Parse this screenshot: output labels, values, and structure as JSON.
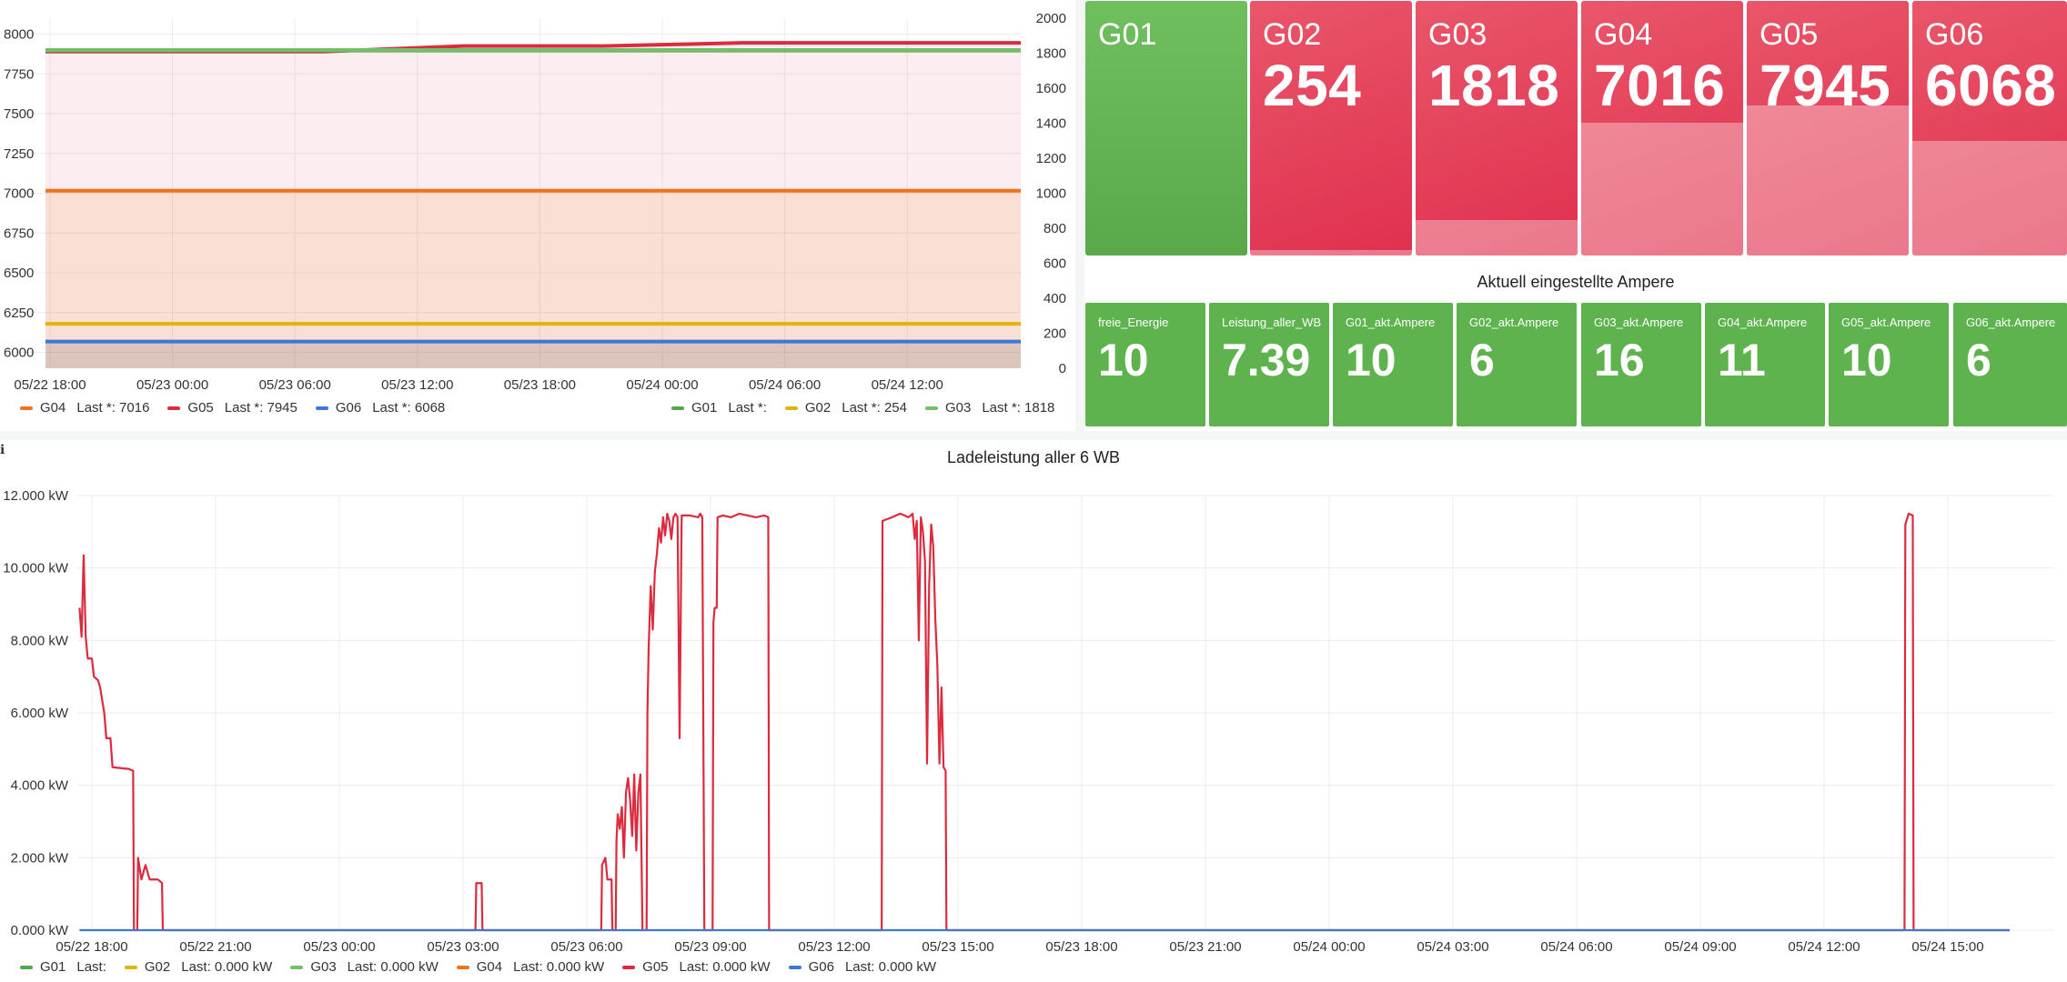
{
  "top_chart": {
    "chart_data": {
      "type": "area",
      "x_ticks": [
        "05/22 18:00",
        "05/23 00:00",
        "05/23 06:00",
        "05/23 12:00",
        "05/23 18:00",
        "05/24 00:00",
        "05/24 06:00",
        "05/24 12:00"
      ],
      "left_axis": {
        "ticks": [
          6000,
          6250,
          6500,
          6750,
          7000,
          7250,
          7500,
          7750,
          8000
        ],
        "ylim": [
          5900,
          8100
        ]
      },
      "right_axis": {
        "ticks": [
          0,
          200,
          400,
          600,
          800,
          1000,
          1200,
          1400,
          1600,
          1800,
          2000
        ],
        "ylim": [
          0,
          2000
        ]
      },
      "series": [
        {
          "name": "G04",
          "axis": "left",
          "color": "#f2721c",
          "values": [
            7016,
            7016
          ]
        },
        {
          "name": "G05",
          "axis": "left",
          "color": "#dc2a3f",
          "values": [
            7890,
            7890,
            7890,
            7925,
            7925,
            7945,
            7945,
            7945
          ]
        },
        {
          "name": "G06",
          "axis": "left",
          "color": "#3b78d8",
          "values": [
            6068,
            6068
          ]
        },
        {
          "name": "G01",
          "axis": "right",
          "color": "#56a64b",
          "values": [
            1815,
            1815
          ]
        },
        {
          "name": "G02",
          "axis": "right",
          "color": "#e0b400",
          "values": [
            254,
            254
          ]
        },
        {
          "name": "G03",
          "axis": "right",
          "color": "#73bf69",
          "values": [
            1818,
            1818
          ]
        }
      ],
      "legend_left": [
        {
          "name": "G04",
          "color": "#f2721c",
          "last": "Last *: 7016"
        },
        {
          "name": "G05",
          "color": "#dc2a3f",
          "last": "Last *: 7945"
        },
        {
          "name": "G06",
          "color": "#3b78d8",
          "last": "Last *: 6068"
        }
      ],
      "legend_right": [
        {
          "name": "G01",
          "color": "#56a64b",
          "last": "Last *:"
        },
        {
          "name": "G02",
          "color": "#e0b400",
          "last": "Last *: 254"
        },
        {
          "name": "G03",
          "color": "#73bf69",
          "last": "Last *: 1818"
        }
      ]
    }
  },
  "stat_tiles": [
    {
      "title": "G01",
      "value": "",
      "style": "green",
      "fill": 0
    },
    {
      "title": "G02",
      "value": "254",
      "style": "red",
      "fill": 0.02
    },
    {
      "title": "G03",
      "value": "1818",
      "style": "red",
      "fill": 0.14
    },
    {
      "title": "G04",
      "value": "7016",
      "style": "red",
      "fill": 0.52
    },
    {
      "title": "G05",
      "value": "7945",
      "style": "red",
      "fill": 0.59
    },
    {
      "title": "G06",
      "value": "6068",
      "style": "red",
      "fill": 0.45
    }
  ],
  "ampere": {
    "title": "Aktuell eingestellte Ampere",
    "tiles": [
      {
        "label": "freie_Energie",
        "value": "10"
      },
      {
        "label": "Leistung_aller_WB",
        "value": "7.39"
      },
      {
        "label": "G01_akt.Ampere",
        "value": "10"
      },
      {
        "label": "G02_akt.Ampere",
        "value": "6"
      },
      {
        "label": "G03_akt.Ampere",
        "value": "16"
      },
      {
        "label": "G04_akt.Ampere",
        "value": "11"
      },
      {
        "label": "G05_akt.Ampere",
        "value": "10"
      },
      {
        "label": "G06_akt.Ampere",
        "value": "6"
      }
    ]
  },
  "bottom_chart": {
    "title": "Ladeleistung aller 6 WB",
    "info_icon": "info-icon",
    "chart_data": {
      "type": "line",
      "x_ticks": [
        "05/22 18:00",
        "05/22 21:00",
        "05/23 00:00",
        "05/23 03:00",
        "05/23 06:00",
        "05/23 09:00",
        "05/23 12:00",
        "05/23 15:00",
        "05/23 18:00",
        "05/23 21:00",
        "05/24 00:00",
        "05/24 03:00",
        "05/24 06:00",
        "05/24 09:00",
        "05/24 12:00",
        "05/24 15:00"
      ],
      "y_ticks": [
        "0.000 kW",
        "2.000 kW",
        "4.000 kW",
        "6.000 kW",
        "8.000 kW",
        "10.000 kW",
        "12.000 kW"
      ],
      "ylim": [
        0,
        12000
      ],
      "series": [
        {
          "name": "G05",
          "color": "#dc2a3f",
          "points": [
            [
              -0.3,
              8900
            ],
            [
              -0.25,
              8100
            ],
            [
              -0.2,
              10350
            ],
            [
              -0.15,
              8100
            ],
            [
              -0.1,
              7500
            ],
            [
              0.0,
              7500
            ],
            [
              0.05,
              7000
            ],
            [
              0.15,
              6900
            ],
            [
              0.2,
              6700
            ],
            [
              0.3,
              6000
            ],
            [
              0.35,
              5300
            ],
            [
              0.45,
              5300
            ],
            [
              0.5,
              4500
            ],
            [
              0.9,
              4450
            ],
            [
              1.0,
              4400
            ],
            [
              1.02,
              0
            ],
            [
              1.1,
              0
            ],
            [
              1.12,
              2000
            ],
            [
              1.2,
              1400
            ],
            [
              1.3,
              1800
            ],
            [
              1.4,
              1400
            ],
            [
              1.6,
              1400
            ],
            [
              1.7,
              1300
            ],
            [
              1.72,
              0
            ],
            [
              9.3,
              0
            ],
            [
              9.32,
              1300
            ],
            [
              9.45,
              1300
            ],
            [
              9.47,
              0
            ],
            [
              12.35,
              0
            ],
            [
              12.37,
              1800
            ],
            [
              12.45,
              2000
            ],
            [
              12.5,
              1400
            ],
            [
              12.6,
              1400
            ],
            [
              12.62,
              0
            ],
            [
              12.7,
              0
            ],
            [
              12.72,
              2500
            ],
            [
              12.75,
              3200
            ],
            [
              12.8,
              2800
            ],
            [
              12.85,
              3400
            ],
            [
              12.9,
              2000
            ],
            [
              12.95,
              3800
            ],
            [
              13.0,
              4200
            ],
            [
              13.05,
              3600
            ],
            [
              13.1,
              2600
            ],
            [
              13.15,
              4300
            ],
            [
              13.2,
              2200
            ],
            [
              13.25,
              3800
            ],
            [
              13.3,
              4300
            ],
            [
              13.35,
              0
            ],
            [
              13.45,
              0
            ],
            [
              13.47,
              6000
            ],
            [
              13.5,
              7800
            ],
            [
              13.55,
              9500
            ],
            [
              13.6,
              8300
            ],
            [
              13.65,
              9900
            ],
            [
              13.7,
              10400
            ],
            [
              13.75,
              11100
            ],
            [
              13.8,
              10700
            ],
            [
              13.85,
              11400
            ],
            [
              13.9,
              10900
            ],
            [
              13.95,
              11500
            ],
            [
              14.0,
              11300
            ],
            [
              14.05,
              10800
            ],
            [
              14.1,
              11400
            ],
            [
              14.15,
              11500
            ],
            [
              14.2,
              11400
            ],
            [
              14.25,
              5300
            ],
            [
              14.3,
              11450
            ],
            [
              14.5,
              11450
            ],
            [
              14.7,
              11400
            ],
            [
              14.75,
              11500
            ],
            [
              14.8,
              11400
            ],
            [
              14.85,
              0
            ],
            [
              15.05,
              0
            ],
            [
              15.07,
              8500
            ],
            [
              15.1,
              8900
            ],
            [
              15.15,
              8900
            ],
            [
              15.17,
              11400
            ],
            [
              15.3,
              11450
            ],
            [
              15.5,
              11400
            ],
            [
              15.7,
              11500
            ],
            [
              15.9,
              11450
            ],
            [
              16.1,
              11400
            ],
            [
              16.3,
              11450
            ],
            [
              16.4,
              11400
            ],
            [
              16.42,
              0
            ],
            [
              19.15,
              0
            ],
            [
              19.17,
              11300
            ],
            [
              19.4,
              11400
            ],
            [
              19.6,
              11500
            ],
            [
              19.8,
              11400
            ],
            [
              19.9,
              11500
            ],
            [
              19.95,
              10800
            ],
            [
              20.0,
              11300
            ],
            [
              20.05,
              8000
            ],
            [
              20.1,
              11400
            ],
            [
              20.15,
              11000
            ],
            [
              20.2,
              10200
            ],
            [
              20.25,
              4600
            ],
            [
              20.3,
              9500
            ],
            [
              20.35,
              11200
            ],
            [
              20.4,
              10600
            ],
            [
              20.45,
              8600
            ],
            [
              20.5,
              7300
            ],
            [
              20.55,
              4600
            ],
            [
              20.6,
              6700
            ],
            [
              20.65,
              4500
            ],
            [
              20.7,
              4400
            ],
            [
              20.72,
              0
            ],
            [
              43.95,
              0
            ],
            [
              43.97,
              11200
            ],
            [
              44.05,
              11500
            ],
            [
              44.15,
              11450
            ],
            [
              44.17,
              0
            ],
            [
              46.5,
              0
            ]
          ]
        },
        {
          "name": "G06",
          "color": "#3b78d8",
          "points": [
            [
              -0.3,
              0
            ],
            [
              46.5,
              0
            ]
          ]
        }
      ],
      "legend": [
        {
          "name": "G01",
          "color": "#56a64b",
          "last": "Last:"
        },
        {
          "name": "G02",
          "color": "#e0b400",
          "last": "Last: 0.000 kW"
        },
        {
          "name": "G03",
          "color": "#73bf69",
          "last": "Last: 0.000 kW"
        },
        {
          "name": "G04",
          "color": "#f2721c",
          "last": "Last: 0.000 kW"
        },
        {
          "name": "G05",
          "color": "#dc2a3f",
          "last": "Last: 0.000 kW"
        },
        {
          "name": "G06",
          "color": "#3b78d8",
          "last": "Last: 0.000 kW"
        }
      ]
    }
  }
}
